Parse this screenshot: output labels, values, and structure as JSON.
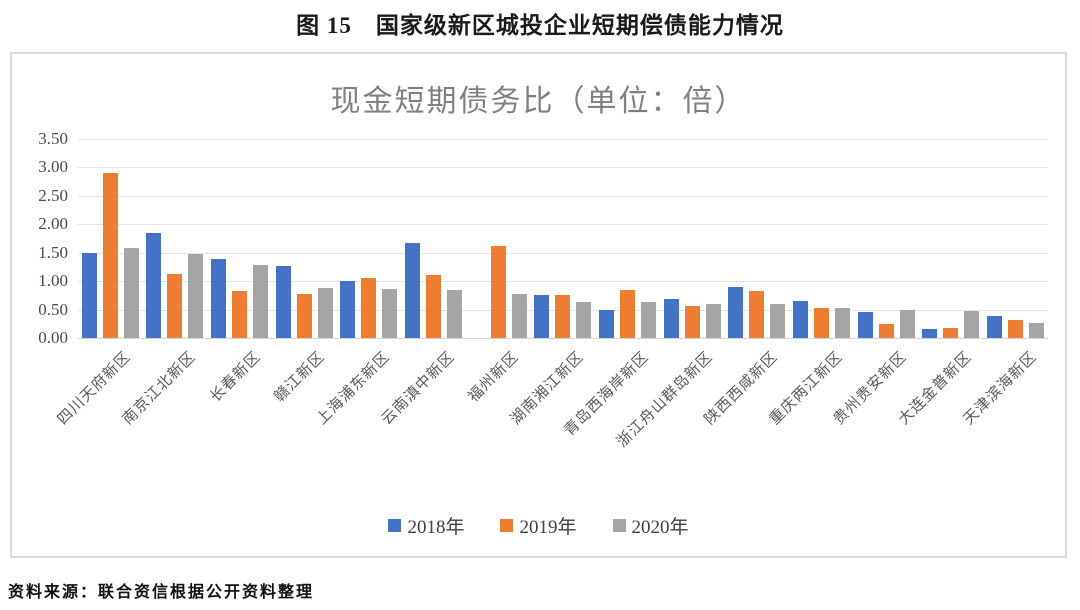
{
  "page": {
    "figure_title": "图 15　国家级新区城投企业短期偿债能力情况",
    "source_note": "资料来源：联合资信根据公开资料整理"
  },
  "chart_data": {
    "type": "bar",
    "title": "现金短期债务比（单位：倍）",
    "categories": [
      "四川天府新区",
      "南京江北新区",
      "长春新区",
      "赣江新区",
      "上海浦东新区",
      "云南滇中新区",
      "福州新区",
      "湖南湘江新区",
      "青岛西海岸新区",
      "浙江舟山群岛新区",
      "陕西西咸新区",
      "重庆两江新区",
      "贵州贵安新区",
      "大连金普新区",
      "天津滨海新区"
    ],
    "series": [
      {
        "name": "2018年",
        "color": "#4472C4",
        "values": [
          1.49,
          1.85,
          1.39,
          1.27,
          1.0,
          1.67,
          0,
          0.75,
          0.5,
          0.68,
          0.89,
          0.65,
          0.45,
          0.15,
          0.39
        ]
      },
      {
        "name": "2019年",
        "color": "#ED7D31",
        "values": [
          2.9,
          1.13,
          0.82,
          0.78,
          1.05,
          1.11,
          1.61,
          0.76,
          0.85,
          0.57,
          0.83,
          0.52,
          0.25,
          0.18,
          0.31
        ]
      },
      {
        "name": "2020年",
        "color": "#A5A5A5",
        "values": [
          1.59,
          1.47,
          1.28,
          0.88,
          0.86,
          0.85,
          0.78,
          0.63,
          0.63,
          0.6,
          0.59,
          0.53,
          0.5,
          0.48,
          0.26
        ]
      }
    ],
    "ylim": [
      0,
      3.5
    ],
    "ytick_step": 0.5,
    "yticks": [
      "3.50",
      "3.00",
      "2.50",
      "2.00",
      "1.50",
      "1.00",
      "0.50",
      "0.00"
    ],
    "grid": true,
    "legend_position": "bottom",
    "plot_background": "#ffffff",
    "gridline_color": "#e2e2e2"
  }
}
